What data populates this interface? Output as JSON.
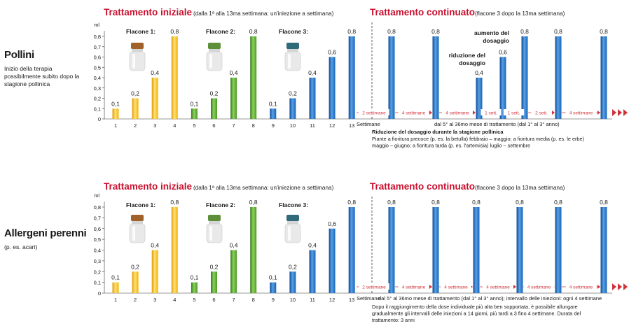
{
  "chart_data": [
    {
      "type": "bar",
      "row_title": "Pollini",
      "row_subtitle": [
        "Inizio della terapia",
        "possibilmente subito dopo la",
        "stagione pollinica"
      ],
      "unit": "ml",
      "ylim": [
        0,
        0.8
      ],
      "yticks": [
        "0",
        "0,1",
        "0,2",
        "0,3",
        "0,4",
        "0,5",
        "0,6",
        "0,7",
        "0,8"
      ],
      "initial_title": "Trattamento iniziale",
      "initial_subtitle": "(dalla 1ª alla 13ma settimana: un'iniezione a settimana)",
      "continued_title": "Trattamento continuato",
      "continued_subtitle": "(flacone 3 dopo la 13ma settimana)",
      "vial_labels": [
        "Flacone 1:",
        "Flacone 2:",
        "Flacone 3:"
      ],
      "categories": [
        "1",
        "2",
        "3",
        "4",
        "5",
        "6",
        "7",
        "8",
        "9",
        "10",
        "11",
        "12",
        "13"
      ],
      "initial_values": [
        0.1,
        0.2,
        0.4,
        0.8,
        0.1,
        0.2,
        0.4,
        0.8,
        0.1,
        0.2,
        0.4,
        0.6,
        0.8
      ],
      "initial_labels": [
        "0,1",
        "0,2",
        "0,4",
        "0,8",
        "0,1",
        "0,2",
        "0,4",
        "0,8",
        "0,1",
        "0,2",
        "0,4",
        "0,6",
        "0,8"
      ],
      "continued_values": [
        0.8,
        0.8,
        0.4,
        0.6,
        0.8,
        0.8,
        0.8
      ],
      "continued_labels": [
        "0,8",
        "0,8",
        "0,4",
        "0,6",
        "0,8",
        "0,8",
        "0,8"
      ],
      "intervals": [
        "2 settimane",
        "4 settimane",
        "4 settimane",
        "1 sett.",
        "1 sett.",
        "2 sett.",
        "4 settimane"
      ],
      "annotation_reduction": [
        "riduzione del",
        "dosaggio"
      ],
      "annotation_increase": [
        "aumento del",
        "dosaggio"
      ],
      "axis_note_left": "Settimane",
      "axis_note_right": "dal 5° al 36mo mese di trattamento (dal 1° al 3° anno)",
      "footnote_title": "Riduzione del dosaggio durante la stagione pollinica",
      "footnote_lines": [
        "Piante a fioritura precoce (p. es. la betulla) febbraio – maggio; a fioritura media (p. es. le erbe)",
        "maggio – giugno; a fioritura tarda (p. es. l'artemisia) luglio – settembre"
      ]
    },
    {
      "type": "bar",
      "row_title": "Allergeni perenni",
      "row_subtitle": [
        "(p. es. acari)"
      ],
      "unit": "ml",
      "ylim": [
        0,
        0.8
      ],
      "yticks": [
        "0",
        "0,1",
        "0,2",
        "0,3",
        "0,4",
        "0,5",
        "0,6",
        "0,7",
        "0,8"
      ],
      "initial_title": "Trattamento iniziale",
      "initial_subtitle": "(dalla 1ª alla 13ma settimana: un'iniezione a settimana)",
      "continued_title": "Trattamento continuato",
      "continued_subtitle": "(flacone 3 dopo la 13ma settimana)",
      "vial_labels": [
        "Flacone 1:",
        "Flacone 2:",
        "Flacone 3:"
      ],
      "categories": [
        "1",
        "2",
        "3",
        "4",
        "5",
        "6",
        "7",
        "8",
        "9",
        "10",
        "11",
        "12",
        "13"
      ],
      "initial_values": [
        0.1,
        0.2,
        0.4,
        0.8,
        0.1,
        0.2,
        0.4,
        0.8,
        0.1,
        0.2,
        0.4,
        0.6,
        0.8
      ],
      "initial_labels": [
        "0,1",
        "0,2",
        "0,4",
        "0,8",
        "0,1",
        "0,2",
        "0,4",
        "0,8",
        "0,1",
        "0,2",
        "0,4",
        "0,6",
        "0,8"
      ],
      "continued_values": [
        0.8,
        0.8,
        0.8,
        0.8,
        0.8,
        0.8
      ],
      "continued_labels": [
        "0,8",
        "0,8",
        "0,8",
        "0,8",
        "0,8",
        "0,8"
      ],
      "intervals": [
        "2 settimane",
        "4 settimane",
        "4 settimane",
        "4 settimane",
        "4 settimane",
        "4 settimane"
      ],
      "axis_note_left": "Settimane",
      "axis_note_right": "dal 5° al 36mo mese di trattamento (dal 1° al 3° anno); intervallo delle iniezioni: ogni 4 settimane",
      "footnote_lines": [
        "Dopo il raggiungimento della dose individuale più alta ben sopportata, è possibile allungare",
        "gradualmente gli intervalli delle iniezioni a 14 giorni, più tardi a 3 fino 4 settimane. Durata del",
        "trattamento: 3 anni"
      ]
    }
  ],
  "colors": {
    "title_red": "#c8102e",
    "interval_red": "#d0323a",
    "yellow": "#f4b400",
    "green": "#4a9a2a",
    "blue": "#1565b8",
    "cap1": "#a0622a",
    "cap2": "#5d8f3a",
    "cap3": "#2f6b78"
  }
}
